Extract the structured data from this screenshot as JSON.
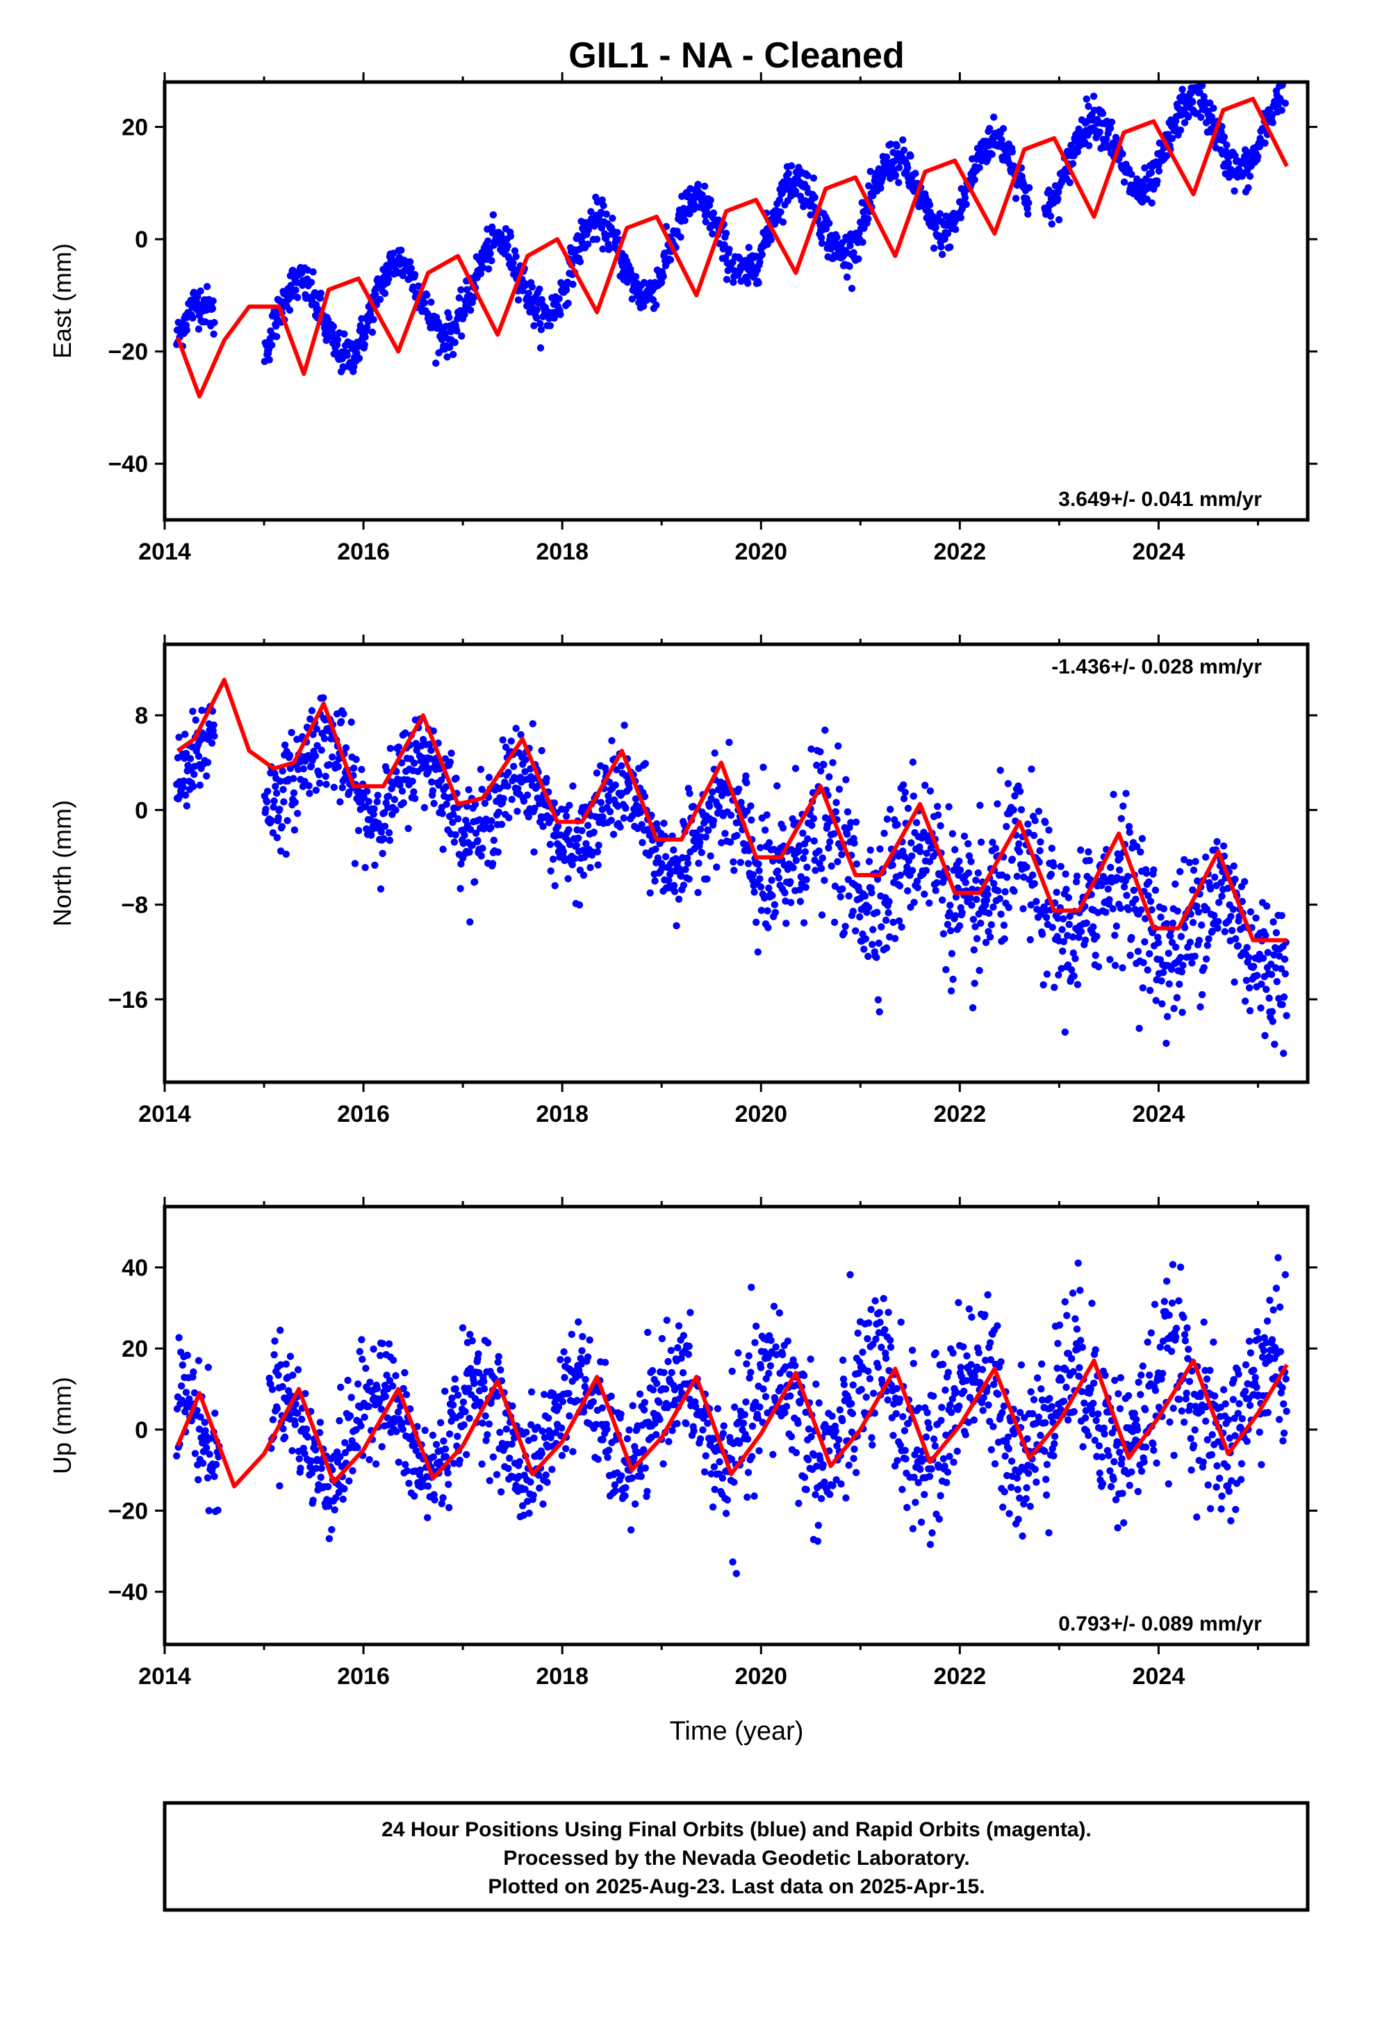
{
  "title": "GIL1  - NA - Cleaned",
  "xlabel": "Time (year)",
  "colors": {
    "data": "#0000ff",
    "model": "#ff0000",
    "frame": "#000000"
  },
  "chart_data": [
    {
      "type": "scatter",
      "component": "east",
      "ylabel": "East (mm)",
      "rate": "3.649+/- 0.041 mm/yr",
      "xlim": [
        2014.0,
        2025.5
      ],
      "ylim": [
        -50,
        28
      ],
      "xticks": [
        2014,
        2016,
        2018,
        2020,
        2022,
        2024
      ],
      "yticks": [
        20,
        0,
        -20,
        -40
      ],
      "trend": {
        "slope": 3.649,
        "offset": -19.5,
        "t0": 2014.15
      },
      "annual_amp": 7.5,
      "annual_phase": 0.34,
      "noise": 1.8,
      "data_start": 2014.12,
      "data_end": 2025.29,
      "gaps": [
        [
          2014.5,
          2015.0
        ],
        [
          2022.7,
          2022.85
        ]
      ],
      "model_samples": [
        [
          2014.13,
          -17.5
        ],
        [
          2014.35,
          -28
        ],
        [
          2014.6,
          -18
        ],
        [
          2014.85,
          -12
        ],
        [
          2015.15,
          -12
        ],
        [
          2015.4,
          -24
        ],
        [
          2015.65,
          -9
        ],
        [
          2015.95,
          -7
        ],
        [
          2016.35,
          -20
        ],
        [
          2016.65,
          -6
        ],
        [
          2016.95,
          -3
        ],
        [
          2017.35,
          -17
        ],
        [
          2017.65,
          -3
        ],
        [
          2017.95,
          0
        ],
        [
          2018.35,
          -13
        ],
        [
          2018.65,
          2
        ],
        [
          2018.95,
          4
        ],
        [
          2019.35,
          -10
        ],
        [
          2019.65,
          5
        ],
        [
          2019.95,
          7
        ],
        [
          2020.35,
          -6
        ],
        [
          2020.65,
          9
        ],
        [
          2020.95,
          11
        ],
        [
          2021.35,
          -3
        ],
        [
          2021.65,
          12
        ],
        [
          2021.95,
          14
        ],
        [
          2022.35,
          1
        ],
        [
          2022.65,
          16
        ],
        [
          2022.95,
          18
        ],
        [
          2023.35,
          4
        ],
        [
          2023.65,
          19
        ],
        [
          2023.95,
          21
        ],
        [
          2024.35,
          8
        ],
        [
          2024.65,
          23
        ],
        [
          2024.95,
          25
        ],
        [
          2025.29,
          13
        ]
      ]
    },
    {
      "type": "scatter",
      "component": "north",
      "ylabel": "North (mm)",
      "rate": "-1.436+/- 0.028 mm/yr",
      "xlim": [
        2014.0,
        2025.5
      ],
      "ylim": [
        -23,
        14
      ],
      "xticks": [
        2014,
        2016,
        2018,
        2020,
        2022,
        2024
      ],
      "yticks": [
        8,
        0,
        -8,
        -16
      ],
      "trend": {
        "slope": -1.436,
        "offset": 5.2,
        "t0": 2014.15
      },
      "annual_amp": 3.0,
      "annual_phase": 0.6,
      "noise": 2.0,
      "data_start": 2014.12,
      "data_end": 2025.29,
      "gaps": [
        [
          2014.5,
          2015.0
        ]
      ],
      "model_samples": [
        [
          2014.13,
          5
        ],
        [
          2014.3,
          6
        ],
        [
          2014.6,
          11
        ],
        [
          2014.85,
          5
        ],
        [
          2015.1,
          3.5
        ],
        [
          2015.3,
          4
        ],
        [
          2015.6,
          9
        ],
        [
          2015.9,
          2
        ],
        [
          2016.2,
          2
        ],
        [
          2016.6,
          8
        ],
        [
          2016.95,
          0.5
        ],
        [
          2017.2,
          1
        ],
        [
          2017.6,
          6
        ],
        [
          2017.95,
          -1
        ],
        [
          2018.2,
          -1
        ],
        [
          2018.6,
          5
        ],
        [
          2018.95,
          -2.5
        ],
        [
          2019.2,
          -2.5
        ],
        [
          2019.6,
          4
        ],
        [
          2019.95,
          -4
        ],
        [
          2020.2,
          -4
        ],
        [
          2020.6,
          2
        ],
        [
          2020.95,
          -5.5
        ],
        [
          2021.2,
          -5.5
        ],
        [
          2021.6,
          0.5
        ],
        [
          2021.95,
          -7
        ],
        [
          2022.2,
          -7
        ],
        [
          2022.6,
          -1
        ],
        [
          2022.95,
          -8.5
        ],
        [
          2023.2,
          -8.5
        ],
        [
          2023.6,
          -2
        ],
        [
          2023.95,
          -10
        ],
        [
          2024.2,
          -10
        ],
        [
          2024.6,
          -3.5
        ],
        [
          2024.95,
          -11
        ],
        [
          2025.29,
          -11
        ]
      ]
    },
    {
      "type": "scatter",
      "component": "up",
      "ylabel": "Up (mm)",
      "rate": "0.793+/- 0.089 mm/yr",
      "xlim": [
        2014.0,
        2025.5
      ],
      "ylim": [
        -53,
        55
      ],
      "xticks": [
        2014,
        2016,
        2018,
        2020,
        2022,
        2024
      ],
      "yticks": [
        40,
        20,
        0,
        -20,
        -40
      ],
      "trend": {
        "slope": 0.793,
        "offset": -2.0,
        "t0": 2014.15
      },
      "annual_amp": 11.0,
      "annual_phase": 0.15,
      "noise": 7.0,
      "data_start": 2014.12,
      "data_end": 2025.29,
      "gaps": [
        [
          2014.55,
          2015.05
        ]
      ],
      "model_samples": [
        [
          2014.13,
          -4
        ],
        [
          2014.35,
          9
        ],
        [
          2014.7,
          -14
        ],
        [
          2015.0,
          -6
        ],
        [
          2015.35,
          10
        ],
        [
          2015.7,
          -13
        ],
        [
          2016.0,
          -5
        ],
        [
          2016.35,
          10
        ],
        [
          2016.7,
          -12
        ],
        [
          2017.0,
          -4
        ],
        [
          2017.35,
          12
        ],
        [
          2017.7,
          -11
        ],
        [
          2018.0,
          -3
        ],
        [
          2018.35,
          13
        ],
        [
          2018.7,
          -10
        ],
        [
          2019.0,
          -2
        ],
        [
          2019.35,
          13
        ],
        [
          2019.7,
          -11
        ],
        [
          2020.0,
          -1
        ],
        [
          2020.35,
          14
        ],
        [
          2020.7,
          -9
        ],
        [
          2021.0,
          0
        ],
        [
          2021.35,
          15
        ],
        [
          2021.7,
          -8
        ],
        [
          2022.0,
          1
        ],
        [
          2022.35,
          15
        ],
        [
          2022.7,
          -7
        ],
        [
          2023.0,
          2
        ],
        [
          2023.35,
          17
        ],
        [
          2023.7,
          -7
        ],
        [
          2024.0,
          3
        ],
        [
          2024.35,
          17
        ],
        [
          2024.7,
          -6
        ],
        [
          2025.0,
          4
        ],
        [
          2025.29,
          16
        ]
      ]
    }
  ],
  "footer": {
    "line1": "24 Hour Positions Using Final Orbits (blue) and Rapid Orbits (magenta).",
    "line2": "Processed by the Nevada Geodetic Laboratory.",
    "line3": "Plotted on 2025-Aug-23. Last data on 2025-Apr-15."
  }
}
